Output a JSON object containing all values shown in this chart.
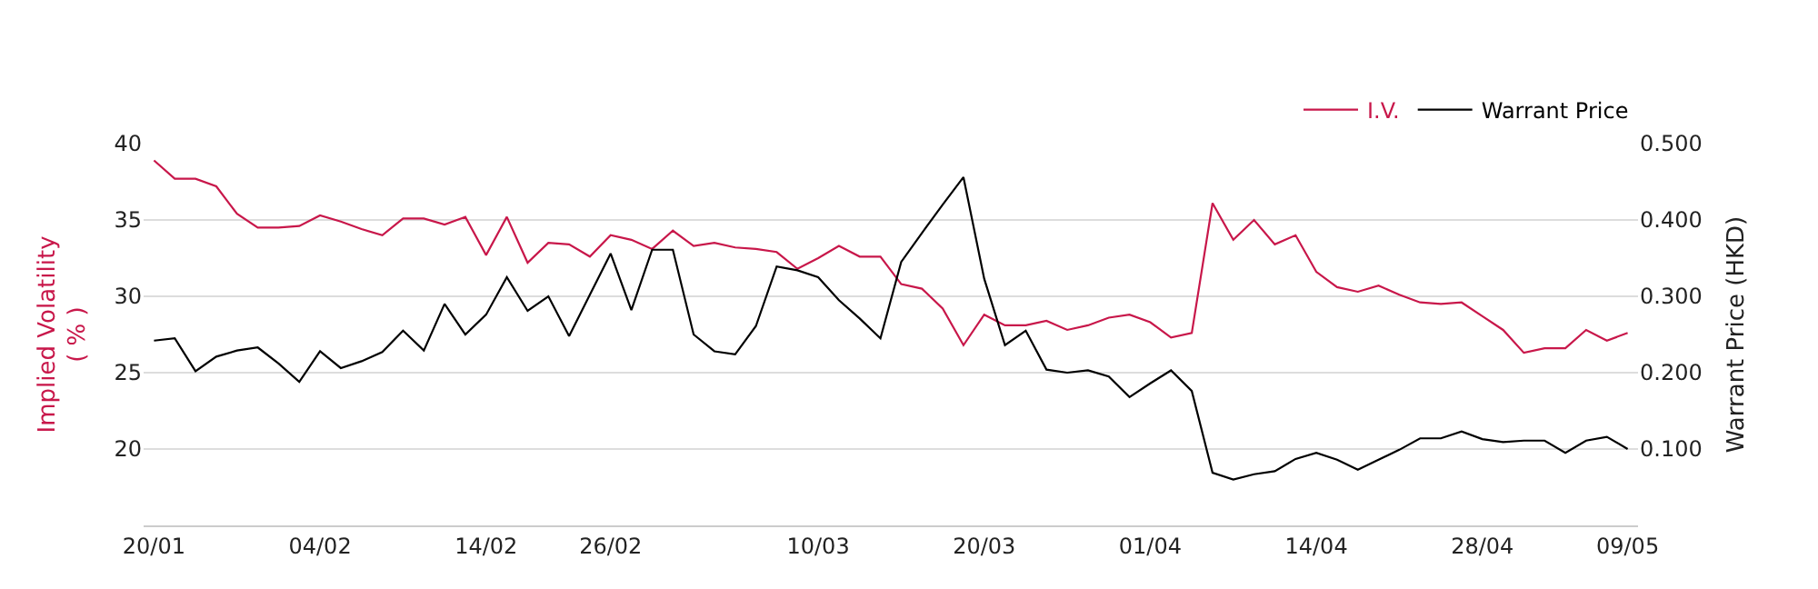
{
  "chart_data": {
    "type": "line",
    "categories": [
      "20/01",
      null,
      null,
      null,
      null,
      null,
      null,
      null,
      "04/02",
      null,
      null,
      null,
      null,
      null,
      null,
      null,
      "14/02",
      null,
      null,
      null,
      null,
      null,
      "26/02",
      null,
      null,
      null,
      null,
      null,
      null,
      null,
      null,
      null,
      "10/03",
      null,
      null,
      null,
      null,
      null,
      null,
      null,
      "20/03",
      null,
      null,
      null,
      null,
      null,
      null,
      null,
      "01/04",
      null,
      null,
      null,
      null,
      null,
      null,
      null,
      "14/04",
      null,
      null,
      null,
      null,
      null,
      null,
      null,
      "28/04",
      null,
      null,
      null,
      null,
      null,
      null,
      "09/05"
    ],
    "series": [
      {
        "name": "I.V.",
        "color": "#c8174a",
        "values": [
          38.9,
          37.7,
          37.7,
          37.2,
          35.4,
          34.5,
          34.5,
          34.6,
          35.3,
          34.9,
          34.4,
          34.0,
          35.1,
          35.1,
          34.7,
          35.2,
          32.7,
          35.2,
          32.2,
          33.5,
          33.4,
          32.6,
          34.0,
          33.7,
          33.1,
          34.3,
          33.3,
          33.5,
          33.2,
          33.1,
          32.9,
          31.8,
          32.5,
          33.3,
          32.6,
          32.6,
          30.8,
          30.5,
          29.2,
          26.8,
          28.8,
          28.1,
          28.1,
          28.4,
          27.8,
          28.1,
          28.6,
          28.8,
          28.3,
          27.3,
          27.6,
          36.1,
          33.7,
          35.0,
          33.4,
          34.0,
          31.6,
          30.6,
          30.3,
          30.7,
          30.1,
          29.6,
          29.5,
          29.6,
          28.7,
          27.8,
          26.3,
          26.6,
          26.6,
          27.8,
          27.1,
          27.6
        ]
      },
      {
        "name": "Warrant Price",
        "color": "#000000",
        "axis": "y2",
        "values": [
          0.242,
          0.245,
          0.202,
          0.221,
          0.229,
          0.233,
          0.212,
          0.188,
          0.228,
          0.206,
          0.215,
          0.227,
          0.255,
          0.229,
          0.29,
          0.25,
          0.276,
          0.325,
          0.281,
          0.3,
          0.248,
          0.302,
          0.356,
          0.282,
          0.361,
          0.361,
          0.25,
          0.228,
          0.224,
          0.261,
          0.339,
          0.334,
          0.325,
          0.295,
          0.271,
          0.245,
          0.345,
          0.383,
          0.42,
          0.456,
          0.323,
          0.236,
          0.255,
          0.204,
          0.2,
          0.203,
          0.195,
          0.168,
          0.186,
          0.203,
          0.176,
          0.069,
          0.06,
          0.067,
          0.071,
          0.087,
          0.095,
          0.086,
          0.073,
          0.086,
          0.099,
          0.114,
          0.114,
          0.123,
          0.113,
          0.109,
          0.111,
          0.111,
          0.095,
          0.111,
          0.116,
          0.1
        ]
      }
    ],
    "ylabel": "Implied Volatility\n( % )",
    "y2label": "Warrant Price (HKD)",
    "ylim": [
      15,
      40
    ],
    "yticks": [
      20,
      25,
      30,
      35,
      40
    ],
    "y2lim": [
      0,
      0.5
    ],
    "y2ticks": [
      {
        "value": 0.1,
        "label": "0.100"
      },
      {
        "value": 0.2,
        "label": "0.200"
      },
      {
        "value": 0.3,
        "label": "0.300"
      },
      {
        "value": 0.4,
        "label": "0.400"
      },
      {
        "value": 0.5,
        "label": "0.500"
      }
    ],
    "grid": "y",
    "legend": "top right",
    "marker": "none",
    "line_style": "solid"
  }
}
